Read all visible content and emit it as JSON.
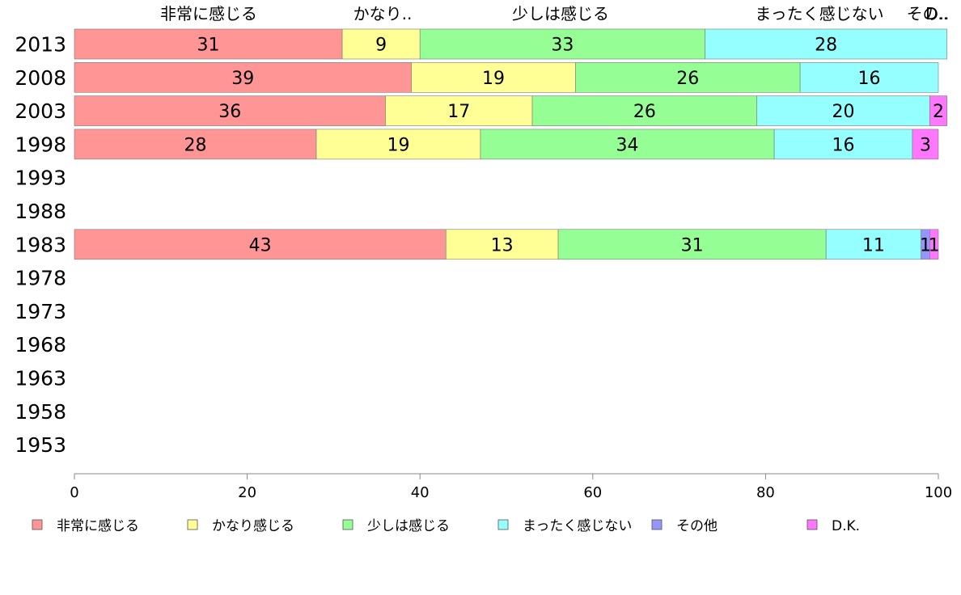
{
  "chart_data": {
    "type": "bar",
    "orientation": "horizontal",
    "stacked": true,
    "categories": [
      "2013",
      "2008",
      "2003",
      "1998",
      "1993",
      "1988",
      "1983",
      "1978",
      "1973",
      "1968",
      "1963",
      "1958",
      "1953"
    ],
    "series": [
      {
        "name": "非常に感じる",
        "color": "#ff9595",
        "values": [
          31,
          39,
          36,
          28,
          null,
          null,
          43,
          null,
          null,
          null,
          null,
          null,
          null
        ]
      },
      {
        "name": "かなり感じる",
        "color": "#ffff95",
        "values": [
          9,
          19,
          17,
          19,
          null,
          null,
          13,
          null,
          null,
          null,
          null,
          null,
          null
        ]
      },
      {
        "name": "少しは感じる",
        "color": "#95ff95",
        "values": [
          33,
          26,
          26,
          34,
          null,
          null,
          31,
          null,
          null,
          null,
          null,
          null,
          null
        ]
      },
      {
        "name": "まったく感じない",
        "color": "#95ffff",
        "values": [
          28,
          16,
          20,
          16,
          null,
          null,
          11,
          null,
          null,
          null,
          null,
          null,
          null
        ]
      },
      {
        "name": "その他",
        "color": "#9595ff",
        "values": [
          0,
          0,
          0,
          0,
          null,
          null,
          1,
          null,
          null,
          null,
          null,
          null,
          null
        ]
      },
      {
        "name": "D.K.",
        "color": "#ff77ff",
        "values": [
          0,
          0,
          2,
          3,
          null,
          null,
          1,
          null,
          null,
          null,
          null,
          null,
          null
        ]
      }
    ],
    "top_labels": [
      "非常に感じる",
      "かなり..",
      "少しは感じる",
      "まったく感じない",
      "その..",
      "D.."
    ],
    "x_ticks": [
      "0",
      "20",
      "40",
      "60",
      "80",
      "100"
    ],
    "xlim": [
      0,
      100
    ],
    "grid": false,
    "legend_position": "bottom"
  }
}
